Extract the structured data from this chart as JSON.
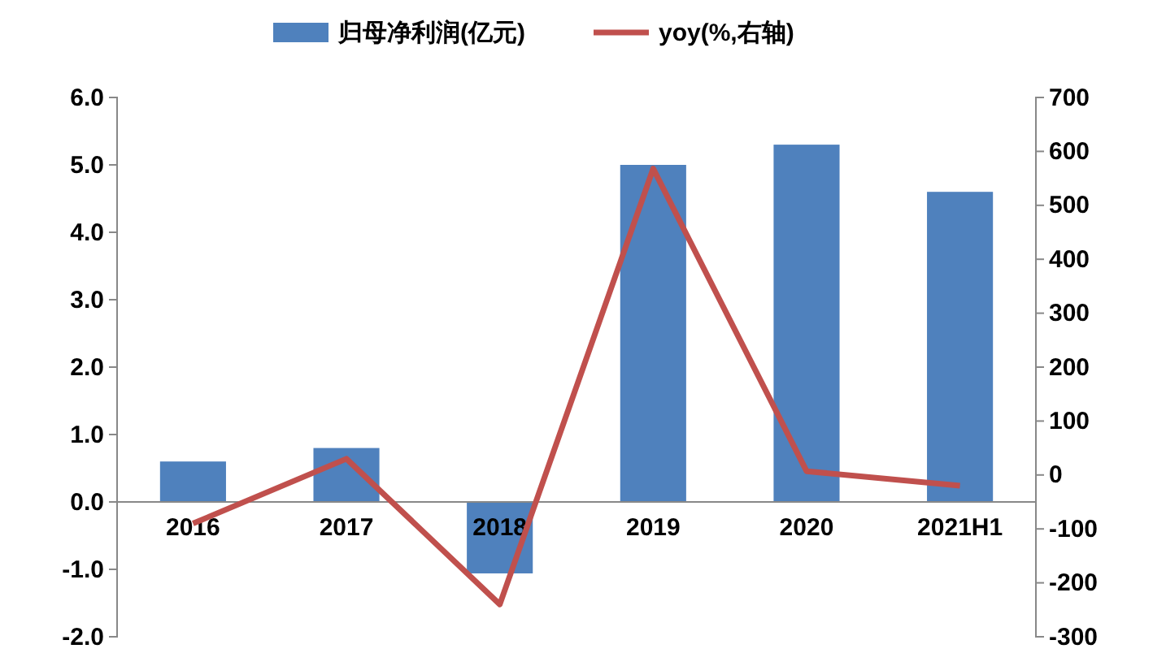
{
  "chart_data": {
    "type": "bar",
    "categories": [
      "2016",
      "2017",
      "2018",
      "2019",
      "2020",
      "2021H1"
    ],
    "series": [
      {
        "name": "归母净利润(亿元)",
        "color": "#4f81bd",
        "values": [
          0.6,
          0.8,
          -1.06,
          5.0,
          5.3,
          4.6
        ]
      },
      {
        "name": "yoy(%,右轴)",
        "type": "line",
        "axis": "y2",
        "color": "#c0504d",
        "values": [
          -90,
          30,
          -240,
          568,
          7,
          -20
        ]
      }
    ],
    "ylim": [
      -2,
      6
    ],
    "yticks": [
      {
        "value": -2,
        "label": "-2.0"
      },
      {
        "value": -1,
        "label": "-1.0"
      },
      {
        "value": 0,
        "label": "0.0"
      },
      {
        "value": 1,
        "label": "1.0"
      },
      {
        "value": 2,
        "label": "2.0"
      },
      {
        "value": 3,
        "label": "3.0"
      },
      {
        "value": 4,
        "label": "4.0"
      },
      {
        "value": 5,
        "label": "5.0"
      },
      {
        "value": 6,
        "label": "6.0"
      }
    ],
    "y2lim": [
      -300,
      700
    ],
    "y2ticks": [
      -300,
      -200,
      -100,
      0,
      100,
      200,
      300,
      400,
      500,
      600,
      700
    ],
    "legend": "top",
    "marker": "none",
    "line_style": "solid"
  }
}
